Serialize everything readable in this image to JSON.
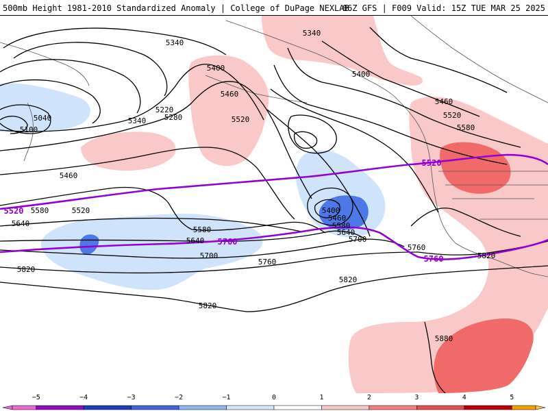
{
  "header": {
    "title_left": "500mb Height 1981-2010 Standardized Anomaly | College of DuPage NEXLAB",
    "title_right": "06Z GFS | F009 Valid: 15Z TUE MAR 25 2025"
  },
  "colors": {
    "pos1": "#f9c8c8",
    "pos2": "#f16a6a",
    "neg1": "#cfe3fb",
    "neg2": "#4d79e8",
    "contour": "#000000",
    "climo": "#9400d3"
  },
  "contour_labels": {
    "l5340a": "5340",
    "l5340b": "5340",
    "l5340c": "5340",
    "l5400a": "5400",
    "l5400b": "5400",
    "l5400c": "5400",
    "l5460a": "5460",
    "l5460b": "5460",
    "l5460c": "5460",
    "l5460d": "5460",
    "l5520a": "5520",
    "l5520b": "5520",
    "l5520c": "5520",
    "l5580a": "5580",
    "l5580b": "5580",
    "l5580c": "5580",
    "l5580d": "5580",
    "l5640a": "5640",
    "l5640b": "5640",
    "l5640c": "5640",
    "l5700a": "5700",
    "l5700b": "5700",
    "l5760a": "5760",
    "l5760b": "5760",
    "l5820a": "5820",
    "l5820b": "5820",
    "l5820c": "5820",
    "l5820d": "5820",
    "l5880": "5880",
    "l5220": "5220",
    "l5280": "5280",
    "l5040": "5040",
    "l5100": "5100"
  },
  "climo_labels": {
    "c5520a": "5520",
    "c5520b": "5520",
    "c5760a": "5760",
    "c5760b": "5760"
  },
  "colorbar": {
    "ticks": [
      "−5",
      "−4",
      "−3",
      "−2",
      "−1",
      "0",
      "1",
      "2",
      "3",
      "4",
      "5"
    ],
    "colors": [
      "#e36bd6",
      "#8b0fb5",
      "#1b3fb4",
      "#3e67d8",
      "#8fb4f0",
      "#d5e6fb",
      "#ffffff",
      "#f9c8c8",
      "#f08080",
      "#e05050",
      "#b80000",
      "#f0a000",
      "#f5c542"
    ]
  }
}
